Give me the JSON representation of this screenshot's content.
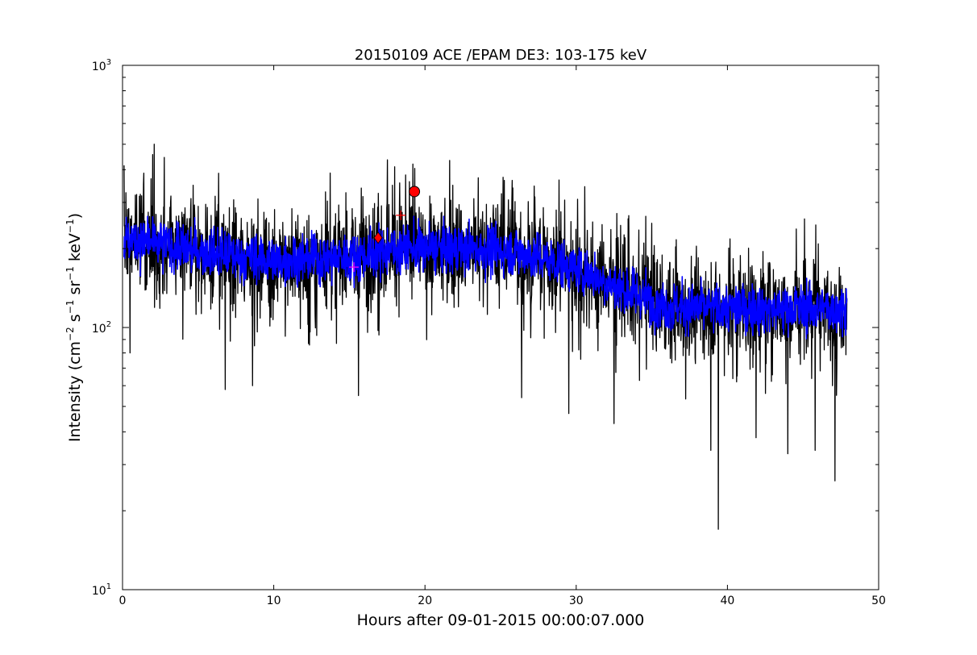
{
  "chart_data": {
    "type": "line",
    "title": "20150109 ACE /EPAM DE3: 103-175 keV",
    "xlabel": "Hours after 09-01-2015 00:00:07.000",
    "ylabel_parts": {
      "prefix": "Intensity (cm",
      "exp1": "−2",
      "s": " s",
      "exp2": "−1",
      "sr": " sr",
      "exp3": "−1",
      "kev": " keV",
      "exp4": "−1",
      "suffix": ")"
    },
    "xlim": [
      0,
      50
    ],
    "ylim": [
      10,
      1000
    ],
    "yscale": "log",
    "grid": false,
    "x_ticks": [
      0,
      10,
      20,
      30,
      40,
      50
    ],
    "x_tick_labels": [
      "0",
      "10",
      "20",
      "30",
      "40",
      "50"
    ],
    "y_ticks": [
      10,
      100,
      1000
    ],
    "y_tick_labels": [
      {
        "base": "10",
        "exp": "1"
      },
      {
        "base": "10",
        "exp": "2"
      },
      {
        "base": "10",
        "exp": "3"
      }
    ],
    "series": [
      {
        "style": "raw",
        "color": "#000000",
        "x_start": 0.1,
        "x_end": 47.9,
        "trend": [
          [
            0.1,
            215
          ],
          [
            2,
            210
          ],
          [
            5,
            195
          ],
          [
            10,
            180
          ],
          [
            15,
            185
          ],
          [
            18,
            200
          ],
          [
            22,
            200
          ],
          [
            26,
            195
          ],
          [
            29,
            175
          ],
          [
            31,
            160
          ],
          [
            33,
            140
          ],
          [
            36,
            120
          ],
          [
            40,
            118
          ],
          [
            44,
            118
          ],
          [
            47.9,
            118
          ]
        ],
        "spikes": [
          [
            2.1,
            500
          ],
          [
            19.2,
            420
          ],
          [
            18,
            410
          ],
          [
            26.4,
            54
          ],
          [
            15.6,
            55
          ],
          [
            29.5,
            47
          ],
          [
            39.4,
            17
          ],
          [
            47.1,
            26
          ],
          [
            45.8,
            34
          ],
          [
            44,
            33
          ],
          [
            38.9,
            34
          ],
          [
            32.5,
            43
          ],
          [
            6.8,
            58
          ],
          [
            8.6,
            60
          ],
          [
            0.5,
            80
          ],
          [
            41.9,
            38
          ]
        ]
      },
      {
        "style": "smoothed",
        "color": "#0000ff",
        "x_start": 0.1,
        "x_end": 47.9,
        "trend": [
          [
            0.1,
            215
          ],
          [
            2,
            210
          ],
          [
            5,
            195
          ],
          [
            10,
            180
          ],
          [
            15,
            185
          ],
          [
            18,
            200
          ],
          [
            22,
            200
          ],
          [
            26,
            195
          ],
          [
            29,
            175
          ],
          [
            31,
            160
          ],
          [
            33,
            140
          ],
          [
            36,
            120
          ],
          [
            40,
            118
          ],
          [
            44,
            118
          ],
          [
            47.9,
            118
          ]
        ]
      }
    ],
    "markers": [
      {
        "kind": "circle",
        "x": 19.3,
        "y": 330,
        "color": "#ff0000"
      },
      {
        "kind": "diamond",
        "x": 16.9,
        "y": 220,
        "color": "#ff0000"
      },
      {
        "kind": "plus",
        "x": 18.4,
        "y": 268,
        "color": "#ff0000"
      },
      {
        "kind": "plus",
        "x": 15.3,
        "y": 170,
        "color": "#ff00ff"
      }
    ]
  }
}
